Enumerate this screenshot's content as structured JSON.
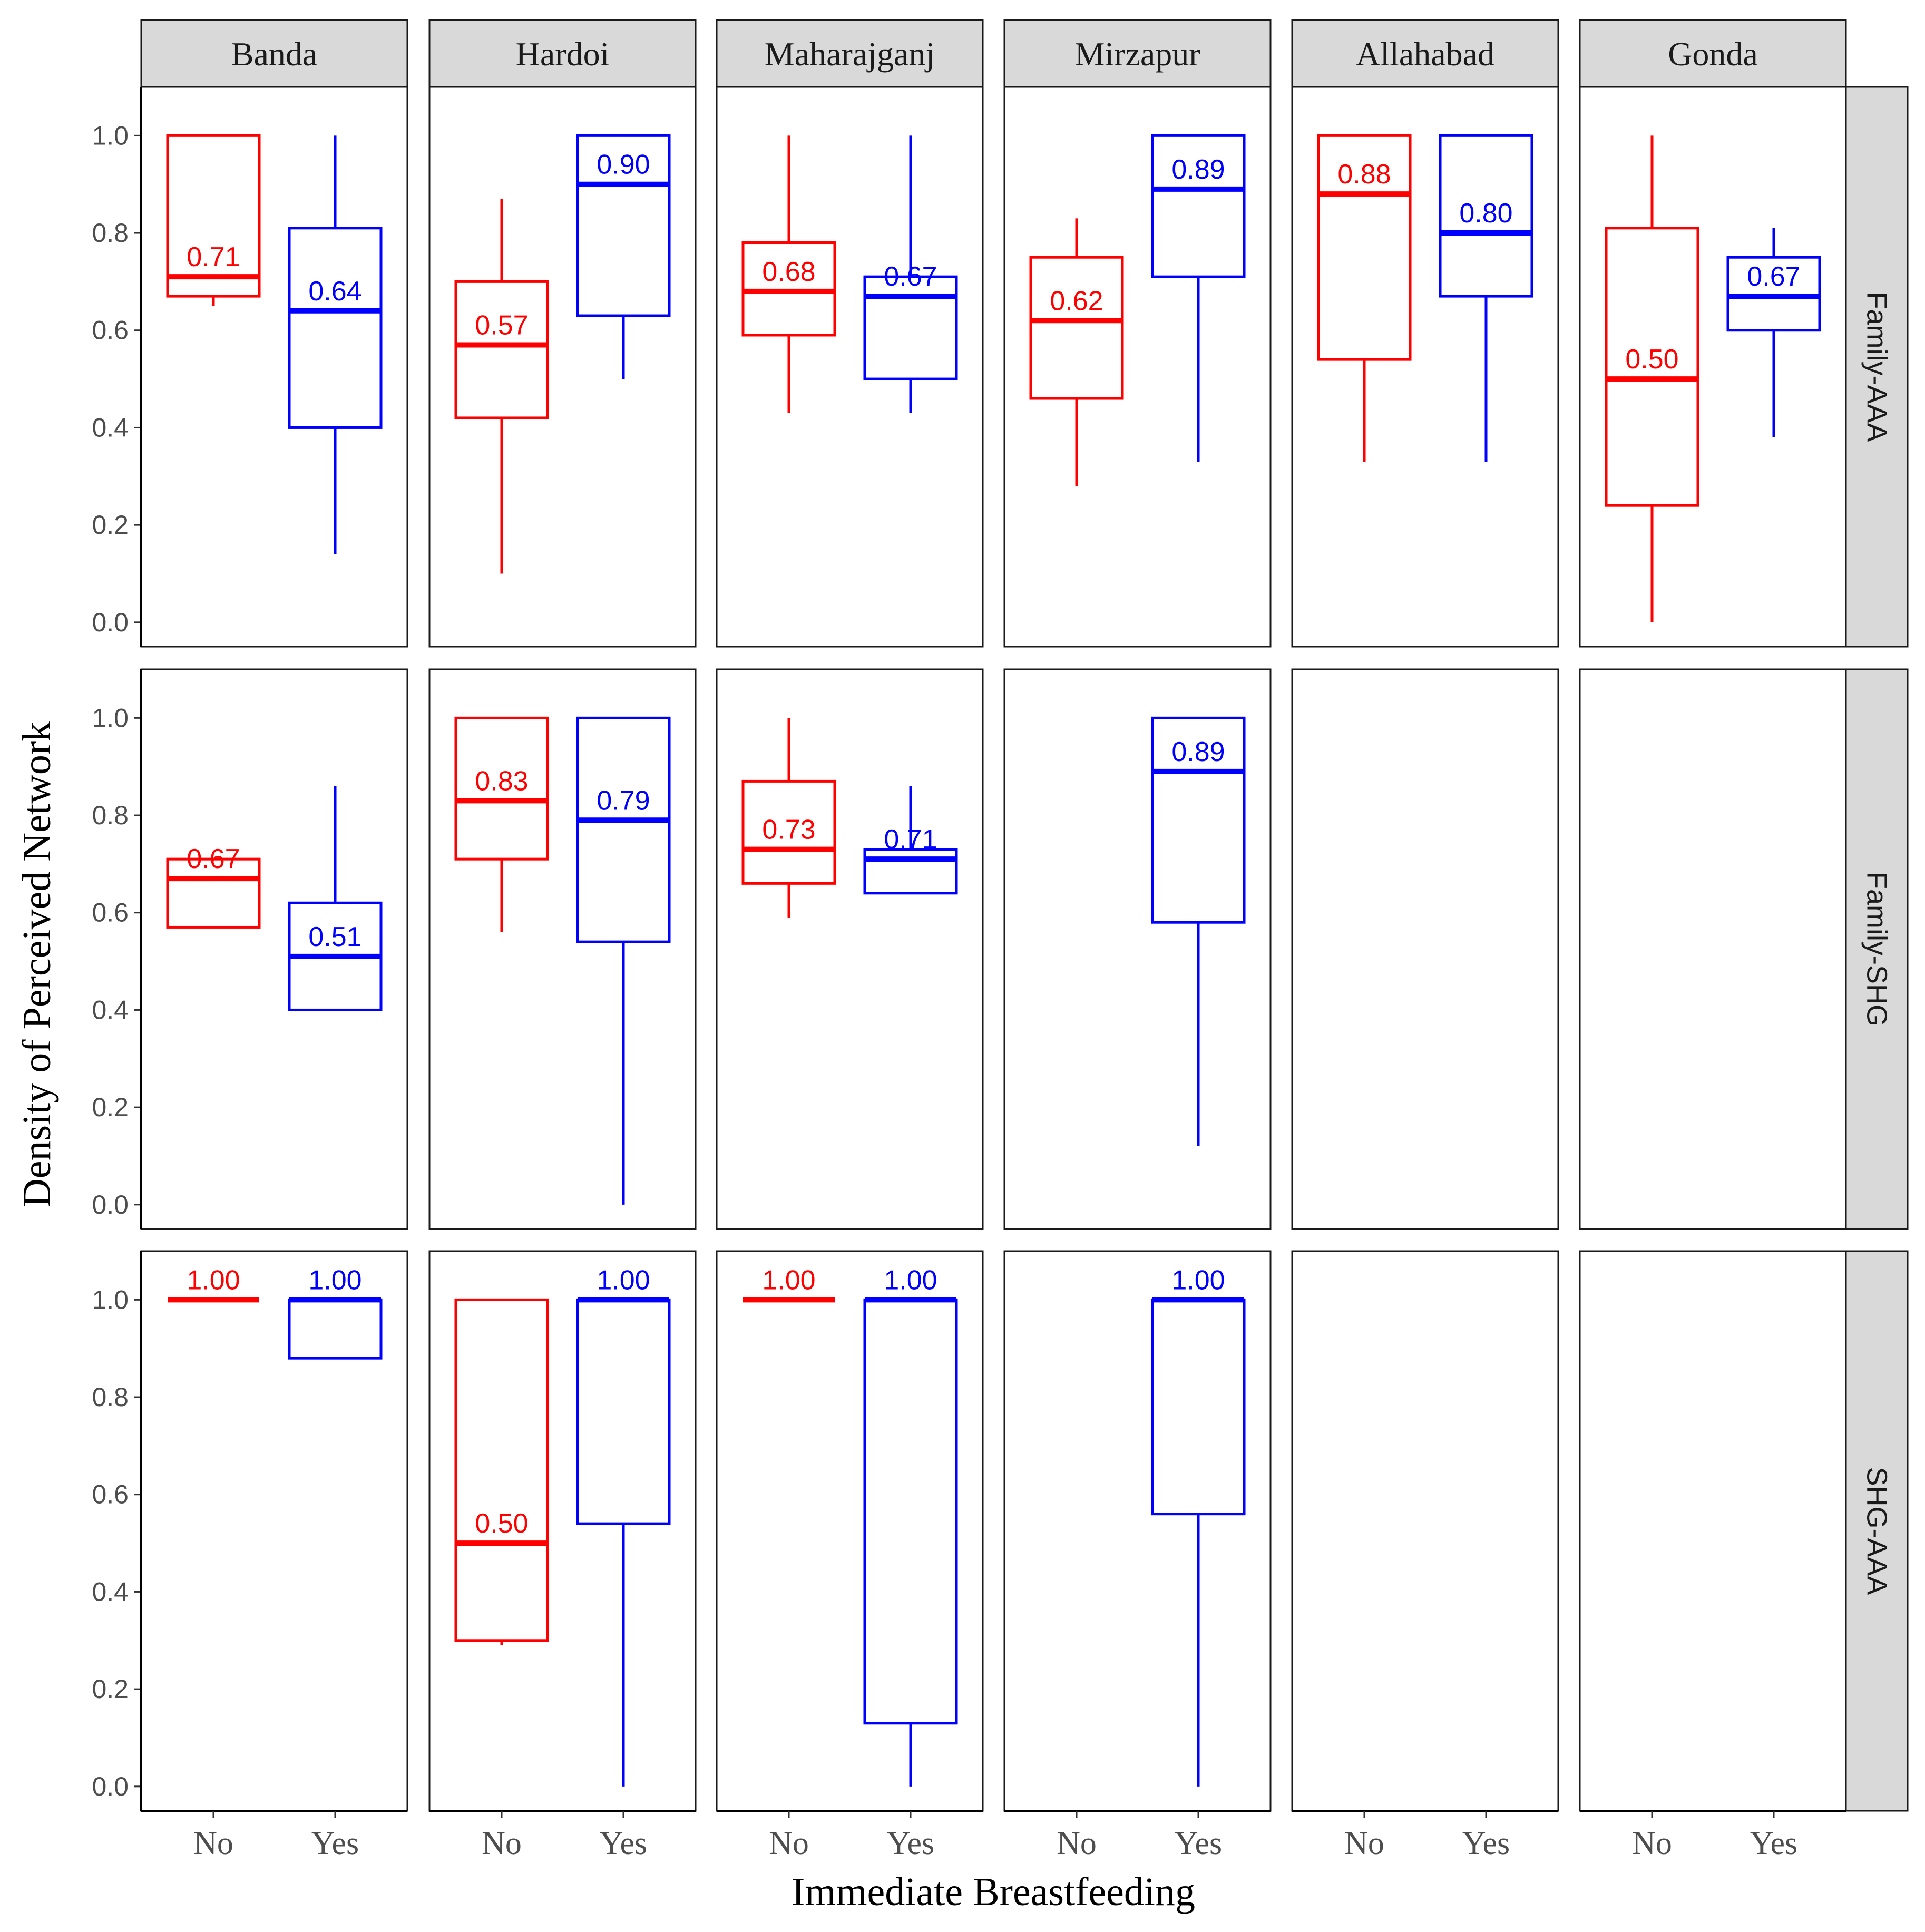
{
  "chart_data": {
    "type": "boxplot",
    "xlabel": "Immediate Breastfeeding",
    "ylabel": "Density of Perceived Network",
    "ylim": [
      -0.05,
      1.1
    ],
    "y_ticks": [
      "0.0",
      "0.2",
      "0.4",
      "0.6",
      "0.8",
      "1.0"
    ],
    "x_categories": [
      "No",
      "Yes"
    ],
    "districts": [
      "Banda",
      "Hardoi",
      "Maharajganj",
      "Mirzapur",
      "Allahabad",
      "Gonda"
    ],
    "network_types": [
      "Family-AAA",
      "Family-SHG",
      "SHG-AAA"
    ],
    "colors": {
      "No": "#ff0000",
      "Yes": "#0000ff"
    },
    "grid": false,
    "boxes": [
      [
        {
          "No": {
            "ymin": 0.65,
            "lower": 0.67,
            "median": 0.71,
            "upper": 1.0,
            "ymax": 1.0,
            "label": "0.71"
          },
          "Yes": {
            "ymin": 0.14,
            "lower": 0.4,
            "median": 0.64,
            "upper": 0.81,
            "ymax": 1.0,
            "label": "0.64"
          }
        },
        {
          "No": {
            "ymin": 0.1,
            "lower": 0.42,
            "median": 0.57,
            "upper": 0.7,
            "ymax": 0.87,
            "label": "0.57"
          },
          "Yes": {
            "ymin": 0.5,
            "lower": 0.63,
            "median": 0.9,
            "upper": 1.0,
            "ymax": 1.0,
            "label": "0.90"
          }
        },
        {
          "No": {
            "ymin": 0.43,
            "lower": 0.59,
            "median": 0.68,
            "upper": 0.78,
            "ymax": 1.0,
            "label": "0.68"
          },
          "Yes": {
            "ymin": 0.43,
            "lower": 0.5,
            "median": 0.67,
            "upper": 0.71,
            "ymax": 1.0,
            "label": "0.67"
          }
        },
        {
          "No": {
            "ymin": 0.28,
            "lower": 0.46,
            "median": 0.62,
            "upper": 0.75,
            "ymax": 0.83,
            "label": "0.62"
          },
          "Yes": {
            "ymin": 0.33,
            "lower": 0.71,
            "median": 0.89,
            "upper": 1.0,
            "ymax": 1.0,
            "label": "0.89"
          }
        },
        {
          "No": {
            "ymin": 0.33,
            "lower": 0.54,
            "median": 0.88,
            "upper": 1.0,
            "ymax": 1.0,
            "label": "0.88"
          },
          "Yes": {
            "ymin": 0.33,
            "lower": 0.67,
            "median": 0.8,
            "upper": 1.0,
            "ymax": 1.0,
            "label": "0.80"
          }
        },
        {
          "No": {
            "ymin": 0.0,
            "lower": 0.24,
            "median": 0.5,
            "upper": 0.81,
            "ymax": 1.0,
            "label": "0.50"
          },
          "Yes": {
            "ymin": 0.38,
            "lower": 0.6,
            "median": 0.67,
            "upper": 0.75,
            "ymax": 0.81,
            "label": "0.67"
          }
        }
      ],
      [
        {
          "No": {
            "ymin": 0.57,
            "lower": 0.57,
            "median": 0.67,
            "upper": 0.71,
            "ymax": 0.71,
            "label": "0.67"
          },
          "Yes": {
            "ymin": 0.4,
            "lower": 0.4,
            "median": 0.51,
            "upper": 0.62,
            "ymax": 0.86,
            "label": "0.51"
          }
        },
        {
          "No": {
            "ymin": 0.56,
            "lower": 0.71,
            "median": 0.83,
            "upper": 1.0,
            "ymax": 1.0,
            "label": "0.83"
          },
          "Yes": {
            "ymin": 0.0,
            "lower": 0.54,
            "median": 0.79,
            "upper": 1.0,
            "ymax": 1.0,
            "label": "0.79"
          }
        },
        {
          "No": {
            "ymin": 0.59,
            "lower": 0.66,
            "median": 0.73,
            "upper": 0.87,
            "ymax": 1.0,
            "label": "0.73"
          },
          "Yes": {
            "ymin": 0.64,
            "lower": 0.64,
            "median": 0.71,
            "upper": 0.73,
            "ymax": 0.86,
            "label": "0.71"
          }
        },
        {
          "No": null,
          "Yes": {
            "ymin": 0.12,
            "lower": 0.58,
            "median": 0.89,
            "upper": 1.0,
            "ymax": 1.0,
            "label": "0.89"
          }
        },
        {
          "No": null,
          "Yes": null
        },
        {
          "No": null,
          "Yes": null
        }
      ],
      [
        {
          "No": {
            "ymin": 1.0,
            "lower": 1.0,
            "median": 1.0,
            "upper": 1.0,
            "ymax": 1.0,
            "label": "1.00"
          },
          "Yes": {
            "ymin": 0.88,
            "lower": 0.88,
            "median": 1.0,
            "upper": 1.0,
            "ymax": 1.0,
            "label": "1.00"
          }
        },
        {
          "No": {
            "ymin": 0.29,
            "lower": 0.3,
            "median": 0.5,
            "upper": 1.0,
            "ymax": 1.0,
            "label": "0.50"
          },
          "Yes": {
            "ymin": 0.0,
            "lower": 0.54,
            "median": 1.0,
            "upper": 1.0,
            "ymax": 1.0,
            "label": "1.00"
          }
        },
        {
          "No": {
            "ymin": 1.0,
            "lower": 1.0,
            "median": 1.0,
            "upper": 1.0,
            "ymax": 1.0,
            "label": "1.00"
          },
          "Yes": {
            "ymin": 0.0,
            "lower": 0.13,
            "median": 1.0,
            "upper": 1.0,
            "ymax": 1.0,
            "label": "1.00"
          }
        },
        {
          "No": null,
          "Yes": {
            "ymin": 0.0,
            "lower": 0.56,
            "median": 1.0,
            "upper": 1.0,
            "ymax": 1.0,
            "label": "1.00"
          }
        },
        {
          "No": null,
          "Yes": null
        },
        {
          "No": null,
          "Yes": null
        }
      ]
    ]
  }
}
